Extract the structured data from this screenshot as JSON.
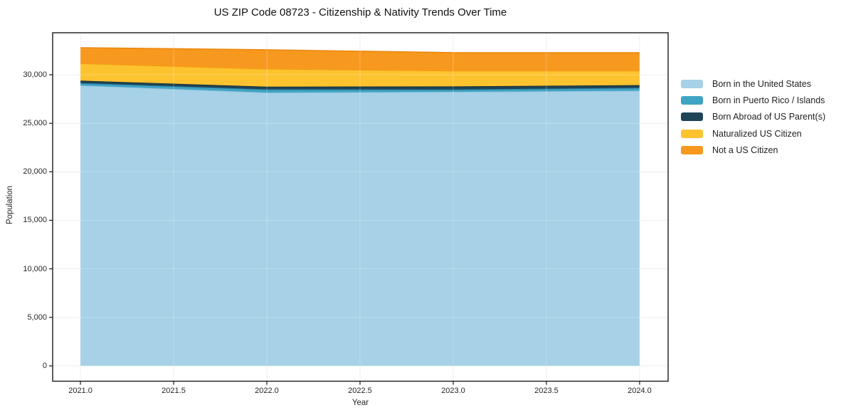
{
  "title": "US ZIP Code 08723 - Citizenship & Nativity Trends Over Time",
  "chart_data": {
    "type": "area",
    "stacked": true,
    "title": "US ZIP Code 08723 - Citizenship & Nativity Trends Over Time",
    "xlabel": "Year",
    "ylabel": "Population",
    "x": [
      2021,
      2022,
      2023,
      2024
    ],
    "series": [
      {
        "name": "Born in the United States",
        "color": "#a6d1e6",
        "edge": "#8cc0da",
        "values": [
          28900,
          28170,
          28240,
          28360
        ]
      },
      {
        "name": "Born in Puerto Rico / Islands",
        "color": "#3fa3c4",
        "edge": "#2b84a3",
        "values": [
          240,
          320,
          240,
          290
        ]
      },
      {
        "name": "Born Abroad of US Parent(s)",
        "color": "#1f4457",
        "edge": "#122c3a",
        "values": [
          250,
          290,
          320,
          290
        ]
      },
      {
        "name": "Naturalized US Citizen",
        "color": "#fdc32f",
        "edge": "#f09d10",
        "values": [
          1780,
          1830,
          1610,
          1470
        ]
      },
      {
        "name": "Not a US Citizen",
        "color": "#f8991f",
        "edge": "#ec8a12",
        "values": [
          1610,
          1960,
          1860,
          1860
        ]
      }
    ],
    "totals": [
      32780,
      32570,
      32270,
      32270
    ],
    "x_ticks": [
      2021.0,
      2021.5,
      2022.0,
      2022.5,
      2023.0,
      2023.5,
      2024.0
    ],
    "x_tick_labels": [
      "2021.0",
      "2021.5",
      "2022.0",
      "2022.5",
      "2023.0",
      "2023.5",
      "2024.0"
    ],
    "y_ticks": [
      0,
      5000,
      10000,
      15000,
      20000,
      25000,
      30000
    ],
    "y_tick_labels": [
      "0",
      "5,000",
      "10,000",
      "15,000",
      "20,000",
      "25,000",
      "30,000"
    ],
    "xlim": [
      2020.851,
      2024.153
    ],
    "ylim": [
      -1580,
      34330
    ],
    "grid": true,
    "legend_position": "right"
  }
}
